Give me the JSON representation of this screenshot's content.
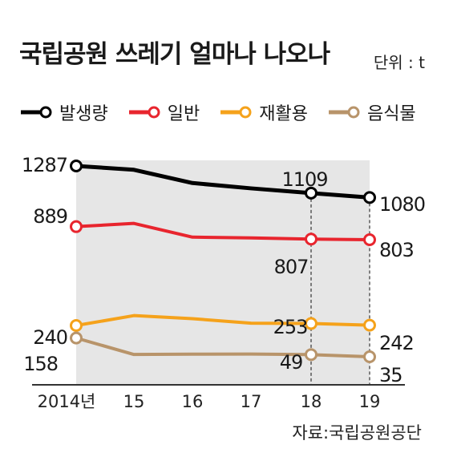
{
  "header": {
    "title": "국립공원 쓰레기 얼마나 나오나",
    "unit": "단위 : t"
  },
  "source": "자료:국립공원공단",
  "chart_data": {
    "type": "line",
    "categories": [
      "2014년",
      "15",
      "16",
      "17",
      "18",
      "19"
    ],
    "ylim": [
      0,
      1400
    ],
    "grid": false,
    "legend_position": "top-left",
    "series": [
      {
        "name": "발생량",
        "color": "#000000",
        "values": [
          1287,
          1262,
          1175,
          1140,
          1109,
          1080
        ],
        "labels": {
          "0": "1287",
          "4": "1109",
          "5": "1080"
        }
      },
      {
        "name": "일반",
        "color": "#e8252e",
        "values": [
          889,
          910,
          820,
          815,
          807,
          803
        ],
        "labels": {
          "0": "889",
          "4": "807",
          "5": "803"
        }
      },
      {
        "name": "재활용",
        "color": "#f5a21b",
        "values": [
          240,
          305,
          285,
          255,
          253,
          242
        ],
        "labels": {
          "0": "240",
          "4": "253",
          "5": "242"
        }
      },
      {
        "name": "음식물",
        "color": "#b8946a",
        "values": [
          158,
          50,
          52,
          53,
          49,
          35
        ],
        "labels": {
          "0": "158",
          "4": "49",
          "5": "35"
        }
      }
    ]
  }
}
